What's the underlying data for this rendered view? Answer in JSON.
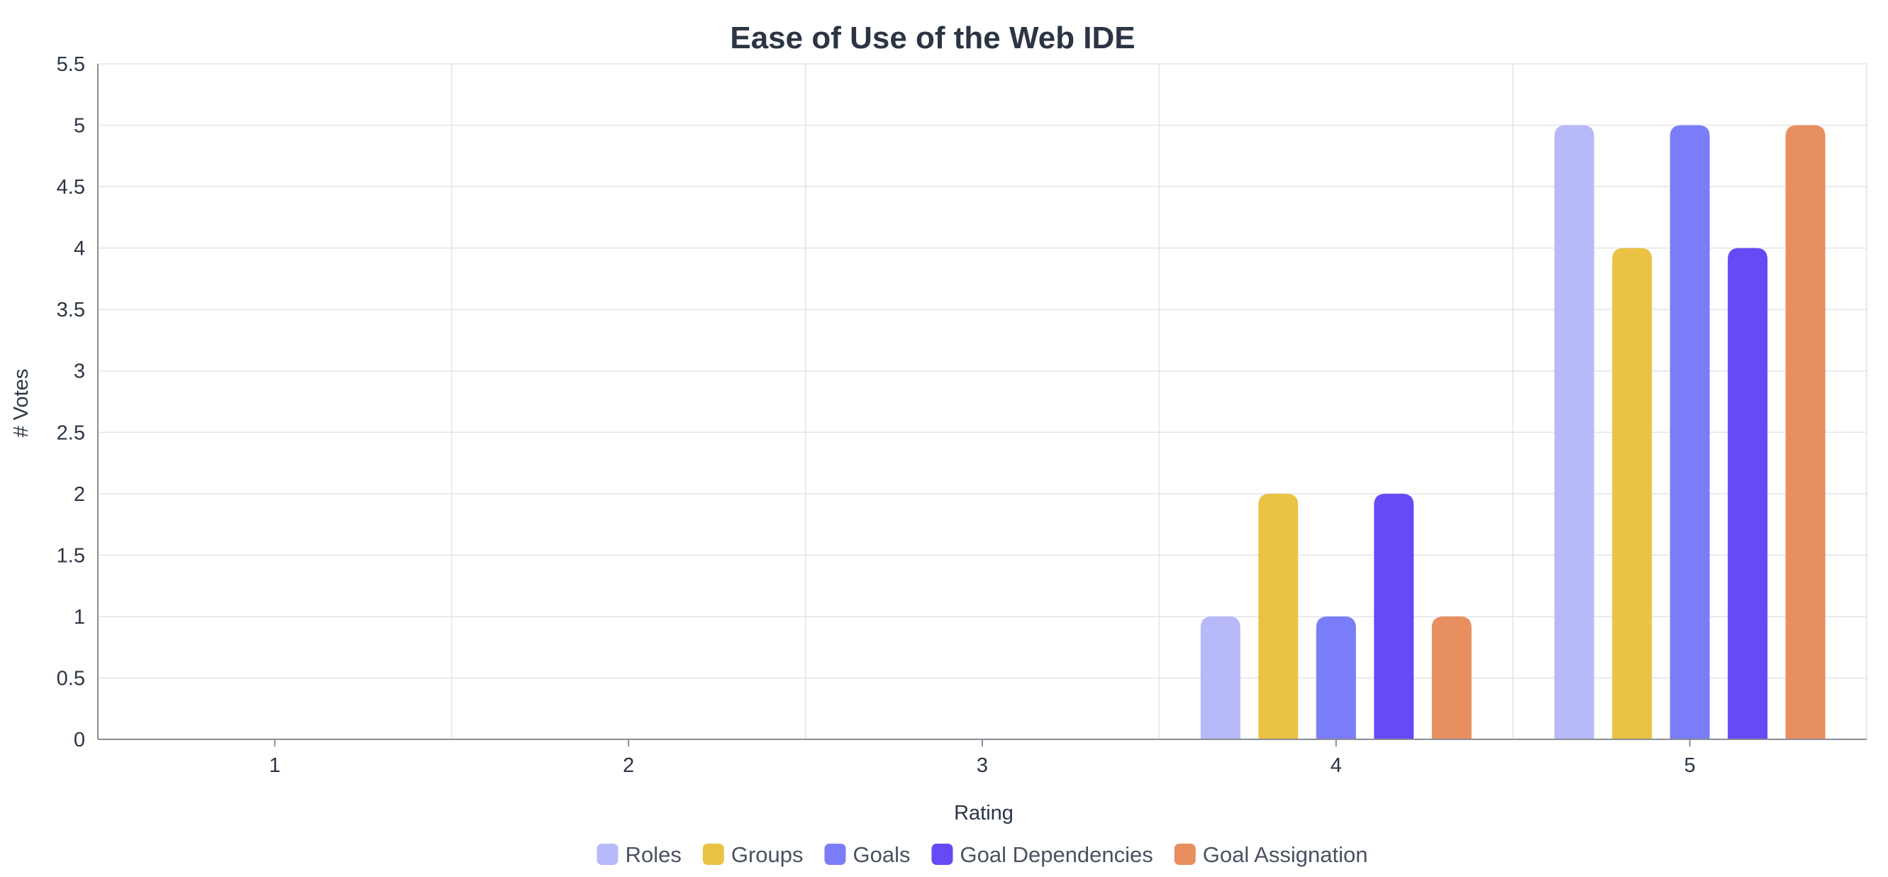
{
  "chart_data": {
    "type": "bar",
    "title": "Ease of Use of the Web IDE",
    "xlabel": "Rating",
    "ylabel": "# Votes",
    "categories": [
      "1",
      "2",
      "3",
      "4",
      "5"
    ],
    "ylim": [
      0,
      5.5
    ],
    "yticks": [
      "0",
      "0.5",
      "1",
      "1.5",
      "2",
      "2.5",
      "3",
      "3.5",
      "4",
      "4.5",
      "5",
      "5.5"
    ],
    "grid": true,
    "legend_position": "bottom-center",
    "series": [
      {
        "name": "Roles",
        "color": "#b8b9f8",
        "values": [
          0,
          0,
          0,
          1,
          5
        ]
      },
      {
        "name": "Groups",
        "color": "#eac244",
        "values": [
          0,
          0,
          0,
          2,
          4
        ]
      },
      {
        "name": "Goals",
        "color": "#7b7cf7",
        "values": [
          0,
          0,
          0,
          1,
          5
        ]
      },
      {
        "name": "Goal Dependencies",
        "color": "#6749f5",
        "values": [
          0,
          0,
          0,
          2,
          4
        ]
      },
      {
        "name": "Goal Assignation",
        "color": "#e78f5e",
        "values": [
          0,
          0,
          0,
          1,
          5
        ]
      }
    ]
  }
}
